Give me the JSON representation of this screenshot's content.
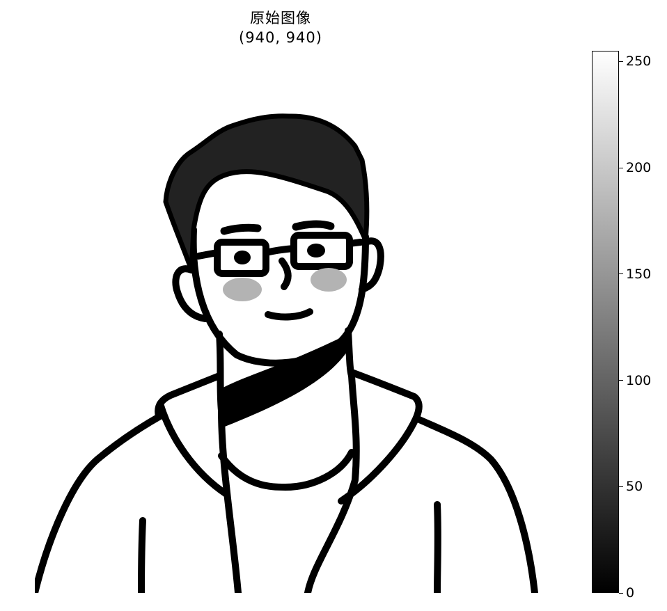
{
  "chart_data": {
    "type": "heatmap",
    "title": "原始图像",
    "subtitle": "(940, 940)",
    "colormap": "gray",
    "colorbar": {
      "vmin": 0,
      "vmax": 255,
      "ticks": [
        {
          "value": 0,
          "label": "0"
        },
        {
          "value": 50,
          "label": "50"
        },
        {
          "value": 100,
          "label": "100"
        },
        {
          "value": 150,
          "label": "150"
        },
        {
          "value": 200,
          "label": "200"
        },
        {
          "value": 250,
          "label": "250"
        }
      ]
    },
    "image_description_icon": "line-art-portrait"
  },
  "colors": {
    "ink": "#000000",
    "hair": "#222222",
    "cheek": "#b3b3b3",
    "paper": "#ffffff"
  }
}
